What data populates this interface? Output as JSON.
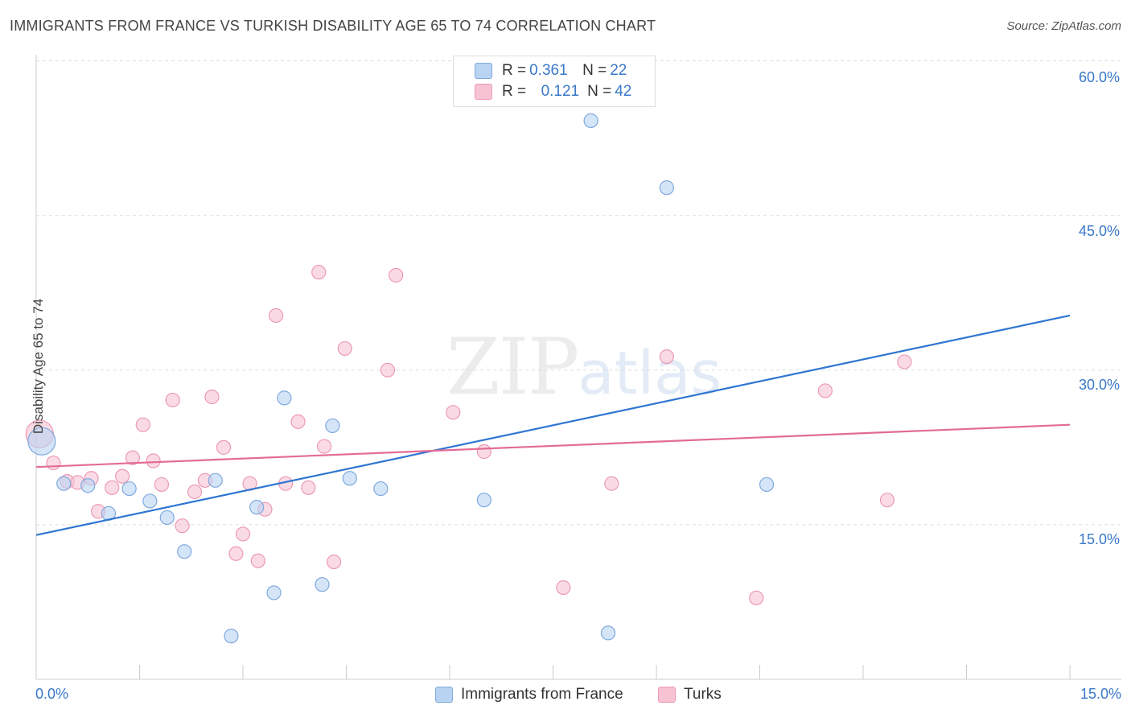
{
  "title": "IMMIGRANTS FROM FRANCE VS TURKISH DISABILITY AGE 65 TO 74 CORRELATION CHART",
  "source": "Source: ZipAtlas.com",
  "watermark": {
    "zip": "ZIP",
    "atlas": "atlas"
  },
  "colors": {
    "blue_fill": "#b9d3f3",
    "blue_stroke": "#7fa9dd",
    "blue_line": "#2f76d2",
    "pink_fill": "#f7c3d3",
    "pink_stroke": "#ec9ab4",
    "pink_line": "#e36b97",
    "grid": "#dddddd",
    "axis_text": "#3a78c8"
  },
  "legend": {
    "r_label": "R =",
    "n_label": "N =",
    "series1_r": "0.361",
    "series1_n": "22",
    "series2_r": "0.121",
    "series2_n": "42"
  },
  "chart_data": {
    "type": "scatter",
    "title": "IMMIGRANTS FROM FRANCE VS TURKISH DISABILITY AGE 65 TO 74 CORRELATION CHART",
    "xlabel": "",
    "ylabel": "Disability Age 65 to 74",
    "xlim": [
      0,
      15
    ],
    "ylim": [
      0,
      62
    ],
    "x_tick_labels": [
      "0.0%",
      "15.0%"
    ],
    "y_ticks": [
      15,
      30,
      45,
      60
    ],
    "y_tick_labels": [
      "15.0%",
      "30.0%",
      "45.0%",
      "60.0%"
    ],
    "grid": true,
    "series": [
      {
        "name": "Immigrants from France",
        "r": 0.361,
        "n": 22,
        "trend": {
          "x": [
            0,
            15
          ],
          "y": [
            14.0,
            35.3
          ]
        },
        "points": [
          {
            "x": 0.08,
            "y": 23.1,
            "big": true
          },
          {
            "x": 0.4,
            "y": 19.0
          },
          {
            "x": 0.75,
            "y": 18.8
          },
          {
            "x": 1.05,
            "y": 16.1
          },
          {
            "x": 1.35,
            "y": 18.5
          },
          {
            "x": 1.65,
            "y": 17.3
          },
          {
            "x": 1.9,
            "y": 15.7
          },
          {
            "x": 2.15,
            "y": 12.4
          },
          {
            "x": 2.6,
            "y": 19.3
          },
          {
            "x": 2.83,
            "y": 4.2
          },
          {
            "x": 3.2,
            "y": 16.7
          },
          {
            "x": 3.45,
            "y": 8.4
          },
          {
            "x": 3.6,
            "y": 27.3
          },
          {
            "x": 4.15,
            "y": 9.2
          },
          {
            "x": 4.3,
            "y": 24.6
          },
          {
            "x": 4.55,
            "y": 19.5
          },
          {
            "x": 5.0,
            "y": 18.5
          },
          {
            "x": 6.5,
            "y": 17.4
          },
          {
            "x": 8.05,
            "y": 54.2
          },
          {
            "x": 8.3,
            "y": 4.5
          },
          {
            "x": 9.15,
            "y": 47.7
          },
          {
            "x": 10.6,
            "y": 18.9
          }
        ]
      },
      {
        "name": "Turks",
        "r": 0.121,
        "n": 42,
        "trend": {
          "x": [
            0,
            15
          ],
          "y": [
            20.6,
            24.7
          ]
        },
        "points": [
          {
            "x": 0.05,
            "y": 23.8,
            "big": true
          },
          {
            "x": 0.25,
            "y": 21.0
          },
          {
            "x": 0.45,
            "y": 19.2
          },
          {
            "x": 0.6,
            "y": 19.1
          },
          {
            "x": 0.8,
            "y": 19.5
          },
          {
            "x": 0.9,
            "y": 16.3
          },
          {
            "x": 1.1,
            "y": 18.6
          },
          {
            "x": 1.25,
            "y": 19.7
          },
          {
            "x": 1.4,
            "y": 21.5
          },
          {
            "x": 1.55,
            "y": 24.7
          },
          {
            "x": 1.7,
            "y": 21.2
          },
          {
            "x": 1.82,
            "y": 18.9
          },
          {
            "x": 1.98,
            "y": 27.1
          },
          {
            "x": 2.12,
            "y": 14.9
          },
          {
            "x": 2.3,
            "y": 18.2
          },
          {
            "x": 2.45,
            "y": 19.3
          },
          {
            "x": 2.55,
            "y": 27.4
          },
          {
            "x": 2.72,
            "y": 22.5
          },
          {
            "x": 2.9,
            "y": 12.2
          },
          {
            "x": 3.0,
            "y": 14.1
          },
          {
            "x": 3.1,
            "y": 19.0
          },
          {
            "x": 3.22,
            "y": 11.5
          },
          {
            "x": 3.32,
            "y": 16.5
          },
          {
            "x": 3.48,
            "y": 35.3
          },
          {
            "x": 3.62,
            "y": 19.0
          },
          {
            "x": 3.8,
            "y": 25.0
          },
          {
            "x": 3.95,
            "y": 18.6
          },
          {
            "x": 4.1,
            "y": 39.5
          },
          {
            "x": 4.18,
            "y": 22.6
          },
          {
            "x": 4.32,
            "y": 11.4
          },
          {
            "x": 4.48,
            "y": 32.1
          },
          {
            "x": 5.1,
            "y": 30.0
          },
          {
            "x": 5.22,
            "y": 39.2
          },
          {
            "x": 6.05,
            "y": 25.9
          },
          {
            "x": 6.5,
            "y": 22.1
          },
          {
            "x": 7.65,
            "y": 8.9
          },
          {
            "x": 8.35,
            "y": 19.0
          },
          {
            "x": 9.15,
            "y": 31.3
          },
          {
            "x": 10.45,
            "y": 7.9
          },
          {
            "x": 11.45,
            "y": 28.0
          },
          {
            "x": 12.35,
            "y": 17.4
          },
          {
            "x": 12.6,
            "y": 30.8
          }
        ]
      }
    ]
  }
}
